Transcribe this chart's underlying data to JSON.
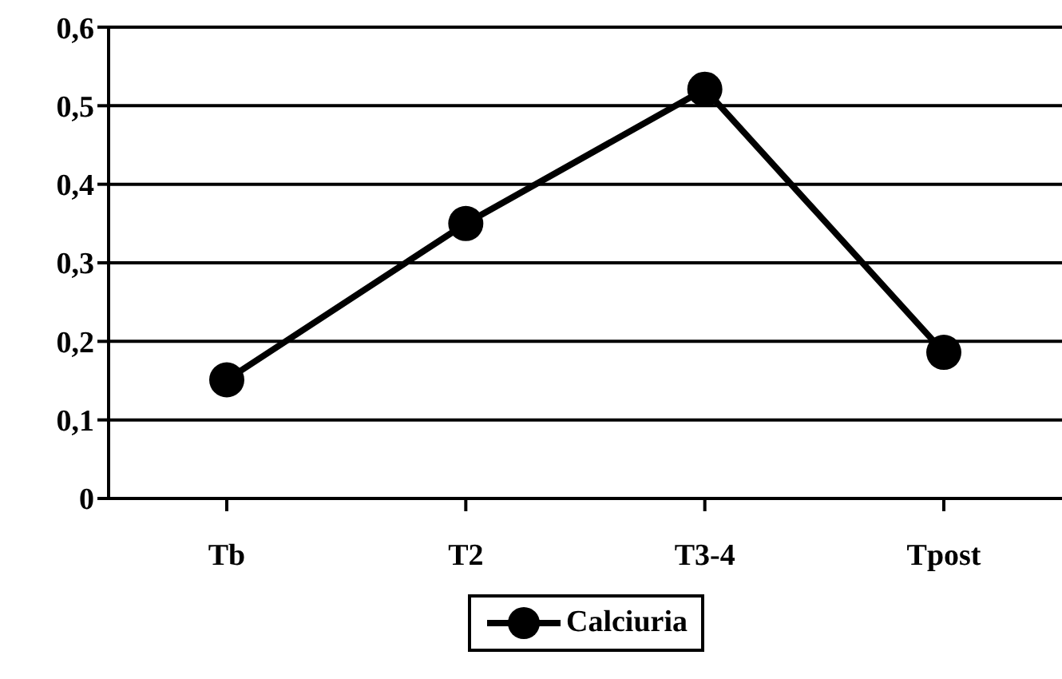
{
  "chart_data": {
    "type": "line",
    "categories": [
      "Tb",
      "T2",
      "T3-4",
      "Tpost"
    ],
    "series": [
      {
        "name": "Calciuria",
        "color": "#000000",
        "values": [
          0.151,
          0.35,
          0.521,
          0.186
        ]
      }
    ],
    "ylim": [
      0,
      0.6
    ],
    "yticks": [
      0,
      {
        "value": 0.1,
        "label": "0,1"
      },
      {
        "value": 0.2,
        "label": "0,2"
      },
      {
        "value": 0.3,
        "label": "0,3"
      },
      {
        "value": 0.4,
        "label": "0,4"
      },
      {
        "value": 0.5,
        "label": "0,5"
      },
      {
        "value": 0.6,
        "label": "0,6"
      }
    ],
    "grid": "y",
    "legend": "bottom",
    "marker": "circle",
    "line_style": "solid"
  }
}
